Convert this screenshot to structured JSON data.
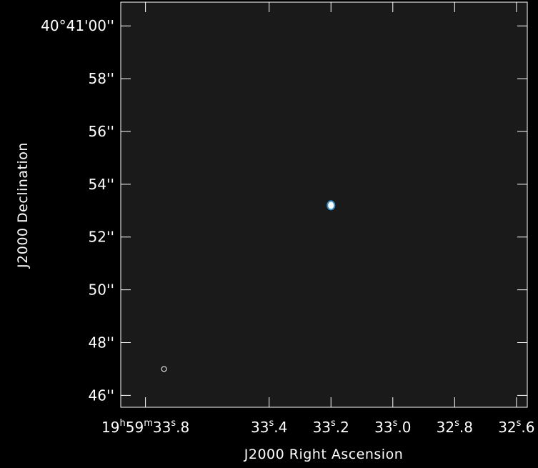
{
  "chart_data": {
    "type": "image",
    "xlabel": "J2000 Right Ascension",
    "ylabel": "J2000 Declination",
    "grid": false,
    "x_ticks": [
      {
        "seconds": 33.8,
        "parts": [
          {
            "t": "19"
          },
          {
            "t": "h",
            "sup": true
          },
          {
            "t": "59"
          },
          {
            "t": "m",
            "sup": true
          },
          {
            "t": "33"
          },
          {
            "t": "s",
            "sup": true
          },
          {
            "t": ".8"
          }
        ]
      },
      {
        "seconds": 33.4,
        "parts": [
          {
            "t": "33"
          },
          {
            "t": "s",
            "sup": true
          },
          {
            "t": ".4"
          }
        ]
      },
      {
        "seconds": 33.2,
        "parts": [
          {
            "t": "33"
          },
          {
            "t": "s",
            "sup": true
          },
          {
            "t": ".2"
          }
        ]
      },
      {
        "seconds": 33.0,
        "parts": [
          {
            "t": "33"
          },
          {
            "t": "s",
            "sup": true
          },
          {
            "t": ".0"
          }
        ]
      },
      {
        "seconds": 32.8,
        "parts": [
          {
            "t": "32"
          },
          {
            "t": "s",
            "sup": true
          },
          {
            "t": ".8"
          }
        ]
      },
      {
        "seconds": 32.6,
        "parts": [
          {
            "t": "32"
          },
          {
            "t": "s",
            "sup": true
          },
          {
            "t": ".6"
          }
        ]
      }
    ],
    "y_ticks": [
      {
        "arcsec": 60,
        "label": "40°41'00''"
      },
      {
        "arcsec": 58,
        "label": "58''"
      },
      {
        "arcsec": 56,
        "label": "56''"
      },
      {
        "arcsec": 54,
        "label": "54''"
      },
      {
        "arcsec": 52,
        "label": "52''"
      },
      {
        "arcsec": 50,
        "label": "50''"
      },
      {
        "arcsec": 48,
        "label": "48''"
      },
      {
        "arcsec": 46,
        "label": "46''"
      }
    ],
    "xlim_seconds": [
      33.88,
      32.565
    ],
    "ylim_arcsec": [
      45.55,
      60.9
    ],
    "source": {
      "ra_seconds": 33.2,
      "dec_arcsec": 53.2
    },
    "beam": {
      "ra_seconds": 33.74,
      "dec_arcsec": 47.0
    },
    "colors": {
      "background": "#000000",
      "panel": "#1a1a1a",
      "frame": "#ffffff",
      "text": "#ffffff",
      "source_fill": "#ffffff",
      "source_contour": "#3a8fc8"
    }
  }
}
